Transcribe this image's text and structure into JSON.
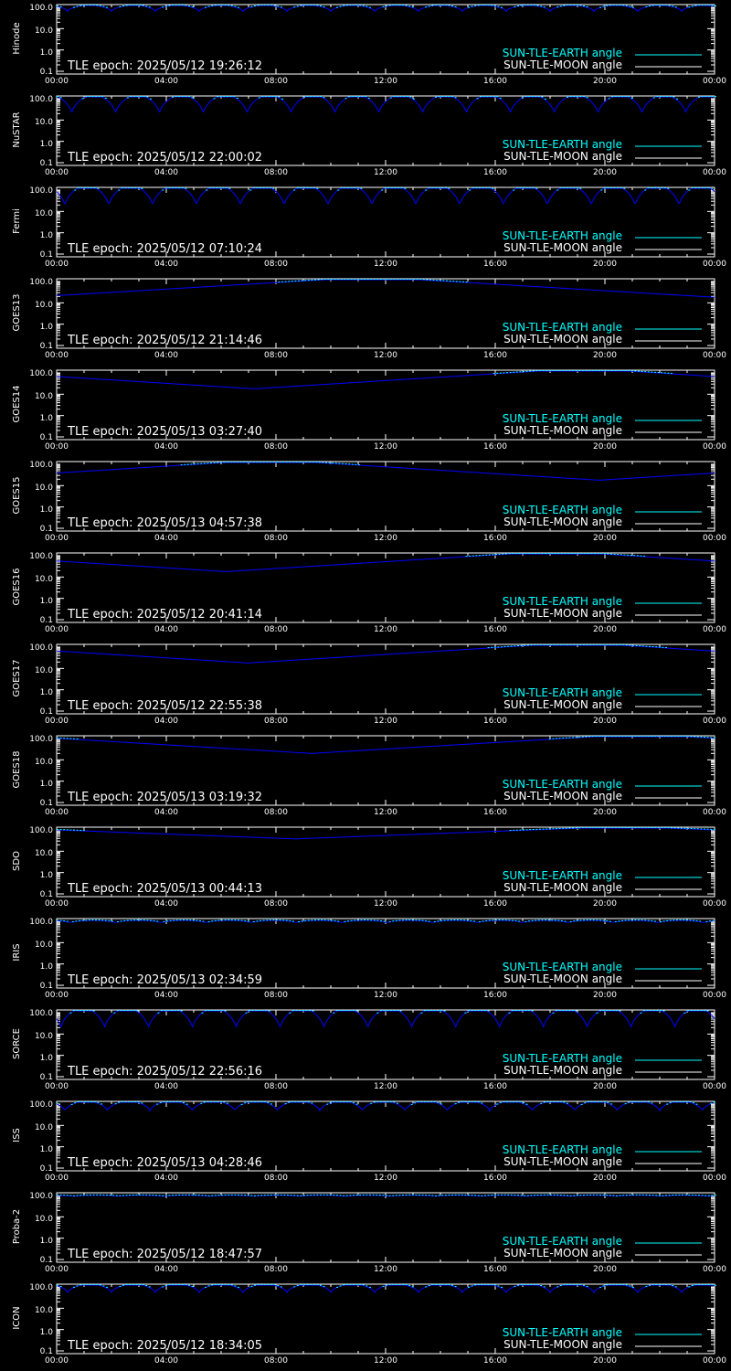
{
  "figure": {
    "background": "#000000",
    "foreground": "#ffffff",
    "earth_color": "#00ffff",
    "moon_color": "#ffffff",
    "curve_color": "#0000ff",
    "x_ticks": [
      "00:00",
      "04:00",
      "08:00",
      "12:00",
      "16:00",
      "20:00",
      "00:00"
    ],
    "y_ticks": [
      "100.0",
      "10.0",
      "1.0",
      "0.1"
    ],
    "legend_earth": "SUN-TLE-EARTH angle",
    "legend_moon": "SUN-TLE-MOON angle",
    "epoch_prefix": "TLE epoch: "
  },
  "chart_data": [
    {
      "type": "line",
      "satellite": "Hinode",
      "epoch": "2025/05/12 19:26:12",
      "x_range_hours": [
        0,
        24
      ],
      "ylim": [
        0.1,
        150
      ],
      "y_scale": "log",
      "series": [
        {
          "kind": "oscillating",
          "period_hours": 1.6,
          "phase_hours": 0.4,
          "max": 125,
          "min": 65
        }
      ]
    },
    {
      "type": "line",
      "satellite": "NuSTAR",
      "epoch": "2025/05/12 22:00:02",
      "x_range_hours": [
        0,
        24
      ],
      "ylim": [
        0.1,
        150
      ],
      "y_scale": "log",
      "series": [
        {
          "kind": "oscillating",
          "period_hours": 1.6,
          "phase_hours": 0.55,
          "max": 150,
          "min": 20
        }
      ]
    },
    {
      "type": "line",
      "satellite": "Fermi",
      "epoch": "2025/05/12 07:10:24",
      "x_range_hours": [
        0,
        24
      ],
      "ylim": [
        0.1,
        150
      ],
      "y_scale": "log",
      "series": [
        {
          "kind": "oscillating",
          "period_hours": 1.6,
          "phase_hours": 0.3,
          "max": 165,
          "min": 18
        }
      ]
    },
    {
      "type": "line",
      "satellite": "GOES13",
      "epoch": "2025/05/12 21:14:46",
      "x_range_hours": [
        0,
        24
      ],
      "ylim": [
        0.1,
        150
      ],
      "y_scale": "log",
      "series": [
        {
          "kind": "daily",
          "t_min_hours": -0.5,
          "max": 165,
          "min": 20
        }
      ]
    },
    {
      "type": "line",
      "satellite": "GOES14",
      "epoch": "2025/05/13 03:27:40",
      "x_range_hours": [
        0,
        24
      ],
      "ylim": [
        0.1,
        150
      ],
      "y_scale": "log",
      "series": [
        {
          "kind": "daily",
          "t_min_hours": 7.2,
          "max": 165,
          "min": 18
        }
      ]
    },
    {
      "type": "line",
      "satellite": "GOES15",
      "epoch": "2025/05/13 04:57:38",
      "x_range_hours": [
        0,
        24
      ],
      "ylim": [
        0.1,
        150
      ],
      "y_scale": "log",
      "series": [
        {
          "kind": "daily",
          "t_min_hours": 19.8,
          "max": 165,
          "min": 18
        }
      ]
    },
    {
      "type": "line",
      "satellite": "GOES16",
      "epoch": "2025/05/12 20:41:14",
      "x_range_hours": [
        0,
        24
      ],
      "ylim": [
        0.1,
        150
      ],
      "y_scale": "log",
      "series": [
        {
          "kind": "daily",
          "t_min_hours": 6.2,
          "max": 165,
          "min": 18
        }
      ]
    },
    {
      "type": "line",
      "satellite": "GOES17",
      "epoch": "2025/05/12 22:55:38",
      "x_range_hours": [
        0,
        24
      ],
      "ylim": [
        0.1,
        150
      ],
      "y_scale": "log",
      "series": [
        {
          "kind": "daily",
          "t_min_hours": 7.0,
          "max": 165,
          "min": 18
        }
      ]
    },
    {
      "type": "line",
      "satellite": "GOES18",
      "epoch": "2025/05/13 03:19:32",
      "x_range_hours": [
        0,
        24
      ],
      "ylim": [
        0.1,
        150
      ],
      "y_scale": "log",
      "series": [
        {
          "kind": "daily",
          "t_min_hours": 9.3,
          "max": 165,
          "min": 20
        }
      ]
    },
    {
      "type": "line",
      "satellite": "SDO",
      "epoch": "2025/05/13 00:44:13",
      "x_range_hours": [
        0,
        24
      ],
      "ylim": [
        0.1,
        150
      ],
      "y_scale": "log",
      "series": [
        {
          "kind": "daily",
          "t_min_hours": 8.7,
          "max": 145,
          "min": 38
        }
      ]
    },
    {
      "type": "line",
      "satellite": "IRIS",
      "epoch": "2025/05/13 02:34:59",
      "x_range_hours": [
        0,
        24
      ],
      "ylim": [
        0.1,
        150
      ],
      "y_scale": "log",
      "series": [
        {
          "kind": "oscillating",
          "period_hours": 1.65,
          "phase_hours": 0.5,
          "max": 110,
          "min": 85
        }
      ]
    },
    {
      "type": "line",
      "satellite": "SORCE",
      "epoch": "2025/05/12 22:56:16",
      "x_range_hours": [
        0,
        24
      ],
      "ylim": [
        0.1,
        150
      ],
      "y_scale": "log",
      "series": [
        {
          "kind": "oscillating",
          "period_hours": 1.6,
          "phase_hours": 0.15,
          "max": 165,
          "min": 18
        }
      ]
    },
    {
      "type": "line",
      "satellite": "ISS",
      "epoch": "2025/05/13 04:28:46",
      "x_range_hours": [
        0,
        24
      ],
      "ylim": [
        0.1,
        150
      ],
      "y_scale": "log",
      "series": [
        {
          "kind": "oscillating",
          "period_hours": 1.55,
          "phase_hours": 0.3,
          "max": 140,
          "min": 48
        }
      ]
    },
    {
      "type": "line",
      "satellite": "Proba-2",
      "epoch": "2025/05/12 18:47:57",
      "x_range_hours": [
        0,
        24
      ],
      "ylim": [
        0.1,
        150
      ],
      "y_scale": "log",
      "series": [
        {
          "kind": "oscillating",
          "period_hours": 1.65,
          "phase_hours": 0.6,
          "max": 102,
          "min": 92
        }
      ]
    },
    {
      "type": "line",
      "satellite": "ICON",
      "epoch": "2025/05/12 18:34:05",
      "x_range_hours": [
        0,
        24
      ],
      "ylim": [
        0.1,
        150
      ],
      "y_scale": "log",
      "series": [
        {
          "kind": "oscillating",
          "period_hours": 1.6,
          "phase_hours": 0.4,
          "max": 135,
          "min": 55
        }
      ]
    }
  ]
}
